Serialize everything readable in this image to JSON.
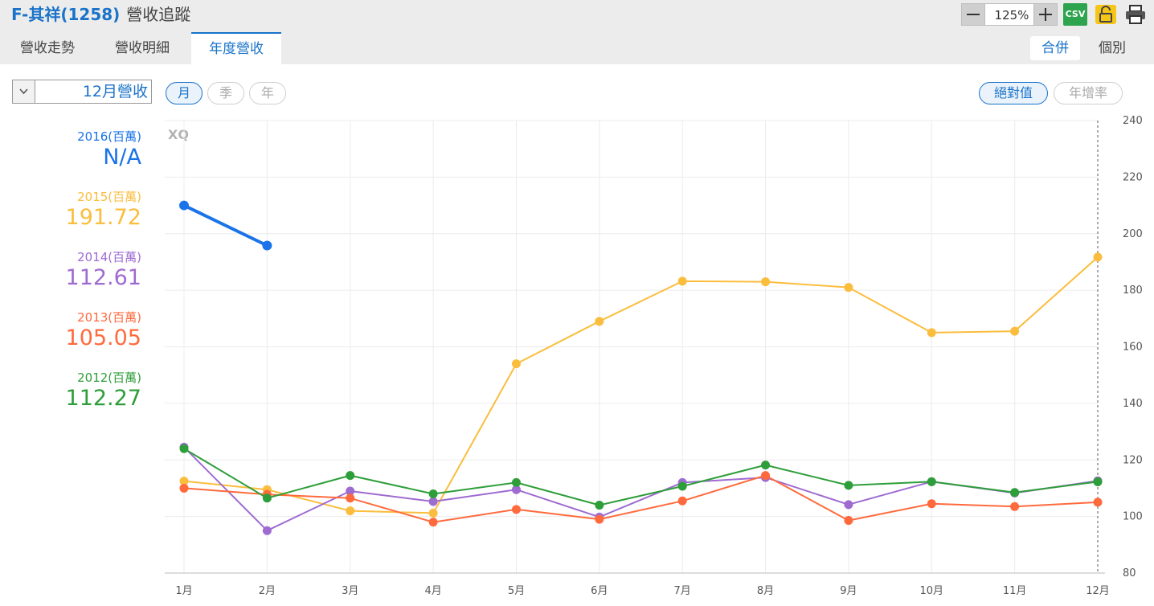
{
  "header": {
    "stock": "F-其祥(1258)",
    "subtitle": "營收追蹤",
    "tabs": [
      {
        "label": "營收走勢",
        "active": false
      },
      {
        "label": "營收明細",
        "active": false
      },
      {
        "label": "年度營收",
        "active": true
      }
    ],
    "zoom": "125%",
    "csv_label": "CSV",
    "merge_toggle": {
      "merged": "合併",
      "individual": "個別",
      "selected": "合併"
    }
  },
  "controls": {
    "month_select": "12月營收",
    "period_buttons": [
      {
        "label": "月",
        "selected": true
      },
      {
        "label": "季",
        "selected": false
      },
      {
        "label": "年",
        "selected": false
      }
    ],
    "value_buttons": [
      {
        "label": "絕對值",
        "selected": true
      },
      {
        "label": "年增率",
        "selected": false
      }
    ]
  },
  "colors": {
    "2016": "#1a73e8",
    "2015": "#fbbd3d",
    "2014": "#9e6bd1",
    "2013": "#ff6a3d",
    "2012": "#2e9e3a"
  },
  "legend": [
    {
      "year": "2016",
      "label": "2016(百萬)",
      "value": "N/A"
    },
    {
      "year": "2015",
      "label": "2015(百萬)",
      "value": "191.72"
    },
    {
      "year": "2014",
      "label": "2014(百萬)",
      "value": "112.61"
    },
    {
      "year": "2013",
      "label": "2013(百萬)",
      "value": "105.05"
    },
    {
      "year": "2012",
      "label": "2012(百萬)",
      "value": "112.27"
    }
  ],
  "chart_data": {
    "type": "line",
    "watermark": "XQ",
    "categories": [
      "1月",
      "2月",
      "3月",
      "4月",
      "5月",
      "6月",
      "7月",
      "8月",
      "9月",
      "10月",
      "11月",
      "12月"
    ],
    "ylim": [
      80,
      240
    ],
    "yticks": [
      80,
      100,
      120,
      140,
      160,
      180,
      200,
      220,
      240
    ],
    "grid": true,
    "series": [
      {
        "name": "2012",
        "values": [
          124,
          106.5,
          114.5,
          108,
          112,
          104,
          110.7,
          118.2,
          111,
          112.3,
          108.5,
          112.27
        ]
      },
      {
        "name": "2013",
        "values": [
          110,
          107.8,
          106.5,
          98,
          102.5,
          99,
          105.5,
          114.5,
          98.6,
          104.5,
          103.5,
          105.05
        ]
      },
      {
        "name": "2014",
        "values": [
          124.5,
          95,
          109,
          105.3,
          109.5,
          99.8,
          112,
          113.8,
          104.2,
          112.3,
          108.3,
          112.61
        ]
      },
      {
        "name": "2015",
        "values": [
          112.5,
          109.5,
          102,
          101.2,
          154,
          169,
          183.2,
          183,
          181,
          165,
          165.5,
          191.72
        ]
      },
      {
        "name": "2016",
        "values": [
          210,
          195.8,
          null,
          null,
          null,
          null,
          null,
          null,
          null,
          null,
          null,
          null
        ]
      }
    ]
  }
}
